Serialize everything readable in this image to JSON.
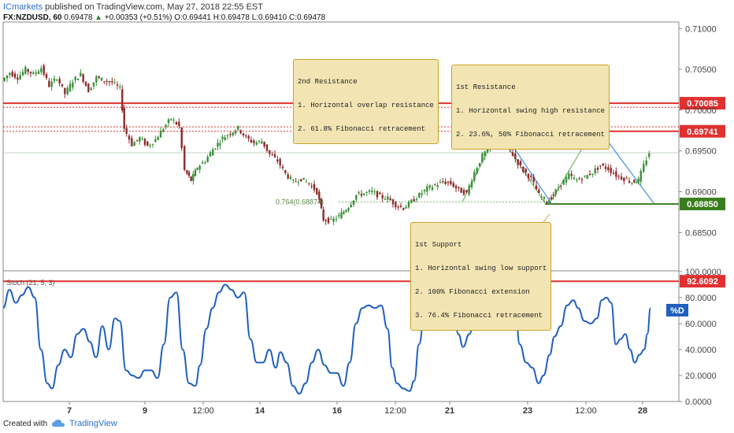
{
  "header": {
    "brand": "ICmarkets",
    "published": " published on TradingView.com, May 27, 2018 22:55 EST",
    "symbol": "FX:NZDUSD, 60",
    "last": "0.69478",
    "change_arrow": "▲",
    "change": "+0.00353 (+0.51%)",
    "open": "O:0.69441",
    "high": "H:0.69478",
    "low": "L:0.69410",
    "close": "C:0.69478"
  },
  "footer": {
    "created_with": "Created with",
    "tv": "TradingView"
  },
  "colors": {
    "resistance": "#e03030",
    "support": "#3a7d1e",
    "up": "#3a8f3a",
    "down": "#8b2b2b",
    "stoch": "#1f5fbf",
    "fib": "#7ab86a",
    "arrow": "#5b9ee0"
  },
  "chart_data": {
    "type": "line",
    "price_axis": {
      "ticks": [
        0.71,
        0.705,
        0.7,
        0.695,
        0.69,
        0.685
      ],
      "tick_labels": [
        "0.71000",
        "0.70500",
        "0.70000",
        "0.69500",
        "0.69000",
        "0.68500"
      ],
      "ylim": [
        0.6805,
        0.7108
      ]
    },
    "x_axis": {
      "labels": [
        "7",
        "9",
        "12:00",
        "14",
        "16",
        "12:00",
        "21",
        "23",
        "12:00",
        "28"
      ]
    },
    "levels": [
      {
        "name": "resistance-2",
        "value": 0.70085,
        "label": "0.70085",
        "kind": "resistance"
      },
      {
        "name": "resistance-1",
        "value": 0.69741,
        "label": "0.69741",
        "kind": "resistance"
      },
      {
        "name": "support-1",
        "value": 0.6885,
        "label": "0.68850",
        "kind": "support"
      }
    ],
    "dotted_levels": [
      0.70035,
      0.69795,
      0.69741
    ],
    "fib_label": "0.764(0.68874)",
    "fib_value": 0.68874,
    "current_price": 0.69478,
    "price_path": [
      [
        0,
        0.7036
      ],
      [
        10,
        0.7046
      ],
      [
        20,
        0.704
      ],
      [
        30,
        0.705
      ],
      [
        40,
        0.7044
      ],
      [
        50,
        0.7052
      ],
      [
        60,
        0.703
      ],
      [
        70,
        0.704
      ],
      [
        80,
        0.702
      ],
      [
        90,
        0.7036
      ],
      [
        100,
        0.7044
      ],
      [
        110,
        0.7024
      ],
      [
        120,
        0.704
      ],
      [
        130,
        0.7036
      ],
      [
        140,
        0.7034
      ],
      [
        150,
        0.7026
      ],
      [
        155,
        0.6978
      ],
      [
        165,
        0.6958
      ],
      [
        175,
        0.6966
      ],
      [
        185,
        0.6956
      ],
      [
        195,
        0.6964
      ],
      [
        205,
        0.6978
      ],
      [
        215,
        0.699
      ],
      [
        225,
        0.698
      ],
      [
        232,
        0.6926
      ],
      [
        240,
        0.6914
      ],
      [
        248,
        0.693
      ],
      [
        258,
        0.6938
      ],
      [
        268,
        0.6952
      ],
      [
        280,
        0.6966
      ],
      [
        290,
        0.6972
      ],
      [
        300,
        0.6978
      ],
      [
        310,
        0.6966
      ],
      [
        320,
        0.696
      ],
      [
        330,
        0.6962
      ],
      [
        340,
        0.6946
      ],
      [
        350,
        0.6938
      ],
      [
        360,
        0.6922
      ],
      [
        370,
        0.6912
      ],
      [
        380,
        0.6916
      ],
      [
        390,
        0.691
      ],
      [
        400,
        0.69
      ],
      [
        408,
        0.6866
      ],
      [
        418,
        0.6864
      ],
      [
        428,
        0.687
      ],
      [
        440,
        0.6882
      ],
      [
        450,
        0.6896
      ],
      [
        460,
        0.6898
      ],
      [
        470,
        0.69
      ],
      [
        480,
        0.6894
      ],
      [
        490,
        0.6892
      ],
      [
        500,
        0.6884
      ],
      [
        510,
        0.688
      ],
      [
        520,
        0.6888
      ],
      [
        530,
        0.6896
      ],
      [
        540,
        0.6904
      ],
      [
        550,
        0.6908
      ],
      [
        560,
        0.6912
      ],
      [
        570,
        0.691
      ],
      [
        580,
        0.6902
      ],
      [
        590,
        0.6898
      ],
      [
        600,
        0.6924
      ],
      [
        610,
        0.6944
      ],
      [
        620,
        0.6956
      ],
      [
        632,
        0.6974
      ],
      [
        642,
        0.6956
      ],
      [
        652,
        0.694
      ],
      [
        662,
        0.6926
      ],
      [
        672,
        0.6916
      ],
      [
        682,
        0.6896
      ],
      [
        692,
        0.6888
      ],
      [
        700,
        0.6896
      ],
      [
        710,
        0.691
      ],
      [
        720,
        0.692
      ],
      [
        730,
        0.6914
      ],
      [
        740,
        0.6918
      ],
      [
        750,
        0.6924
      ],
      [
        760,
        0.6932
      ],
      [
        770,
        0.6928
      ],
      [
        780,
        0.692
      ],
      [
        790,
        0.6916
      ],
      [
        800,
        0.6912
      ],
      [
        808,
        0.6914
      ],
      [
        815,
        0.6932
      ],
      [
        822,
        0.6948
      ]
    ],
    "stochastic": {
      "label": "Stoch (21, 5, 3)",
      "series_badge": "%D",
      "axis_ticks": [
        100,
        80,
        60,
        40,
        20,
        0
      ],
      "tick_labels": [
        "100.0000",
        "80.0000",
        "60.0000",
        "40.0000",
        "20.0000",
        "0.0000"
      ],
      "ylim": [
        0,
        100
      ],
      "level": 92.6092,
      "level_label": "92.6092",
      "values": [
        [
          0,
          72
        ],
        [
          8,
          86
        ],
        [
          16,
          76
        ],
        [
          24,
          82
        ],
        [
          32,
          88
        ],
        [
          40,
          80
        ],
        [
          48,
          40
        ],
        [
          56,
          14
        ],
        [
          62,
          10
        ],
        [
          70,
          28
        ],
        [
          78,
          40
        ],
        [
          86,
          34
        ],
        [
          94,
          52
        ],
        [
          102,
          56
        ],
        [
          110,
          46
        ],
        [
          118,
          34
        ],
        [
          126,
          58
        ],
        [
          134,
          40
        ],
        [
          142,
          64
        ],
        [
          148,
          62
        ],
        [
          156,
          24
        ],
        [
          164,
          20
        ],
        [
          172,
          18
        ],
        [
          180,
          24
        ],
        [
          188,
          24
        ],
        [
          196,
          18
        ],
        [
          204,
          44
        ],
        [
          212,
          80
        ],
        [
          220,
          84
        ],
        [
          228,
          40
        ],
        [
          236,
          14
        ],
        [
          244,
          12
        ],
        [
          250,
          28
        ],
        [
          258,
          56
        ],
        [
          266,
          72
        ],
        [
          274,
          84
        ],
        [
          282,
          90
        ],
        [
          290,
          86
        ],
        [
          298,
          80
        ],
        [
          306,
          84
        ],
        [
          314,
          48
        ],
        [
          322,
          30
        ],
        [
          330,
          30
        ],
        [
          338,
          40
        ],
        [
          346,
          26
        ],
        [
          352,
          38
        ],
        [
          360,
          30
        ],
        [
          368,
          12
        ],
        [
          376,
          6
        ],
        [
          384,
          14
        ],
        [
          392,
          30
        ],
        [
          400,
          40
        ],
        [
          408,
          28
        ],
        [
          416,
          22
        ],
        [
          424,
          22
        ],
        [
          432,
          12
        ],
        [
          440,
          30
        ],
        [
          448,
          60
        ],
        [
          456,
          72
        ],
        [
          464,
          74
        ],
        [
          472,
          72
        ],
        [
          480,
          74
        ],
        [
          488,
          56
        ],
        [
          494,
          26
        ],
        [
          500,
          14
        ],
        [
          508,
          10
        ],
        [
          516,
          8
        ],
        [
          522,
          16
        ],
        [
          528,
          44
        ],
        [
          536,
          74
        ],
        [
          544,
          82
        ],
        [
          550,
          80
        ],
        [
          556,
          90
        ],
        [
          564,
          96
        ],
        [
          570,
          90
        ],
        [
          578,
          52
        ],
        [
          584,
          42
        ],
        [
          592,
          52
        ],
        [
          600,
          70
        ],
        [
          608,
          88
        ],
        [
          614,
          94
        ],
        [
          622,
          96
        ],
        [
          630,
          88
        ],
        [
          638,
          84
        ],
        [
          644,
          82
        ],
        [
          650,
          72
        ],
        [
          656,
          44
        ],
        [
          664,
          30
        ],
        [
          672,
          26
        ],
        [
          680,
          14
        ],
        [
          686,
          20
        ],
        [
          694,
          36
        ],
        [
          700,
          50
        ],
        [
          708,
          58
        ],
        [
          716,
          74
        ],
        [
          724,
          78
        ],
        [
          730,
          72
        ],
        [
          738,
          62
        ],
        [
          746,
          60
        ],
        [
          754,
          64
        ],
        [
          760,
          78
        ],
        [
          766,
          80
        ],
        [
          772,
          76
        ],
        [
          778,
          44
        ],
        [
          784,
          48
        ],
        [
          790,
          52
        ],
        [
          796,
          40
        ],
        [
          802,
          30
        ],
        [
          808,
          36
        ],
        [
          814,
          40
        ],
        [
          818,
          52
        ],
        [
          822,
          72
        ]
      ]
    }
  },
  "notes": [
    {
      "name": "note-2nd-resistance",
      "lines": [
        "2nd Resistance",
        "1. Horizontal overlap resistance",
        "2. 61.8% Fibonacci retracement"
      ]
    },
    {
      "name": "note-1st-resistance",
      "lines": [
        "1st Resistance",
        "1. Horizontal swing high resistance",
        "2. 23.6%, 50% Fibonacci retracement"
      ]
    },
    {
      "name": "note-1st-support",
      "lines": [
        "1st Support",
        "1. Horizontal swing low support",
        "2. 100% Fibonacci extension",
        "3. 76.4% Fibonacci retracement"
      ]
    }
  ]
}
